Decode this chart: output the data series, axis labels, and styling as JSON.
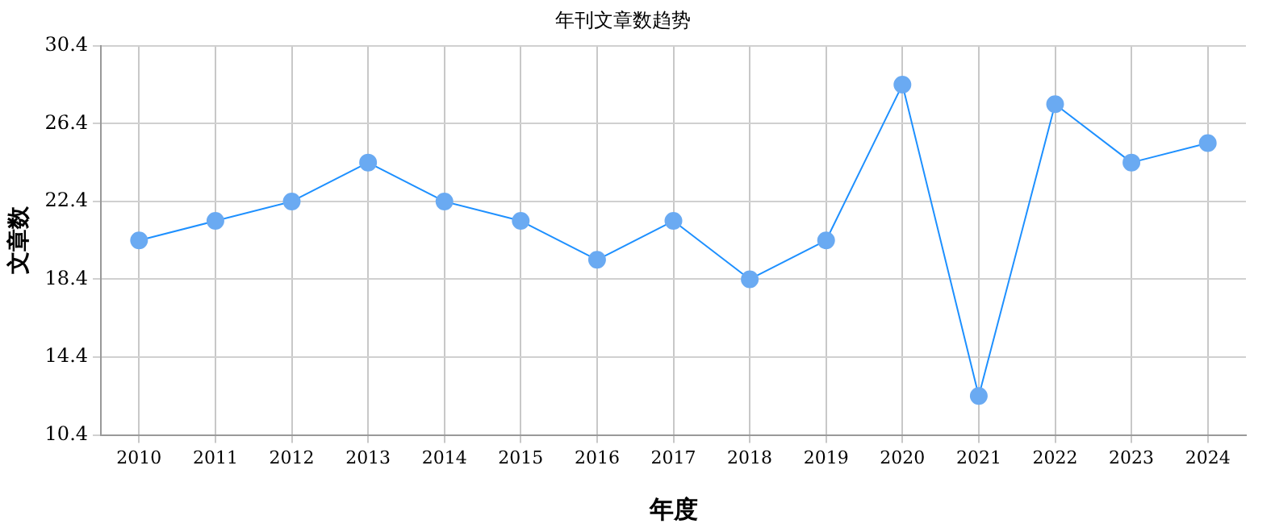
{
  "chart_data": {
    "type": "line",
    "title": "年刊文章数趋势",
    "xlabel": "年度",
    "ylabel": "文章数",
    "categories": [
      "2010",
      "2011",
      "2012",
      "2013",
      "2014",
      "2015",
      "2016",
      "2017",
      "2018",
      "2019",
      "2020",
      "2021",
      "2022",
      "2023",
      "2024"
    ],
    "series": [
      {
        "color": "#1e90ff",
        "values": [
          20.4,
          21.4,
          22.4,
          24.4,
          22.4,
          21.4,
          19.4,
          21.4,
          18.4,
          20.4,
          28.4,
          12.4,
          27.4,
          24.4,
          25.4
        ]
      }
    ],
    "ylim": [
      10.4,
      30.4
    ],
    "yticks": [
      10.4,
      14.4,
      18.4,
      22.4,
      26.4,
      30.4
    ],
    "grid": true,
    "marker": "circle",
    "legend": false
  }
}
